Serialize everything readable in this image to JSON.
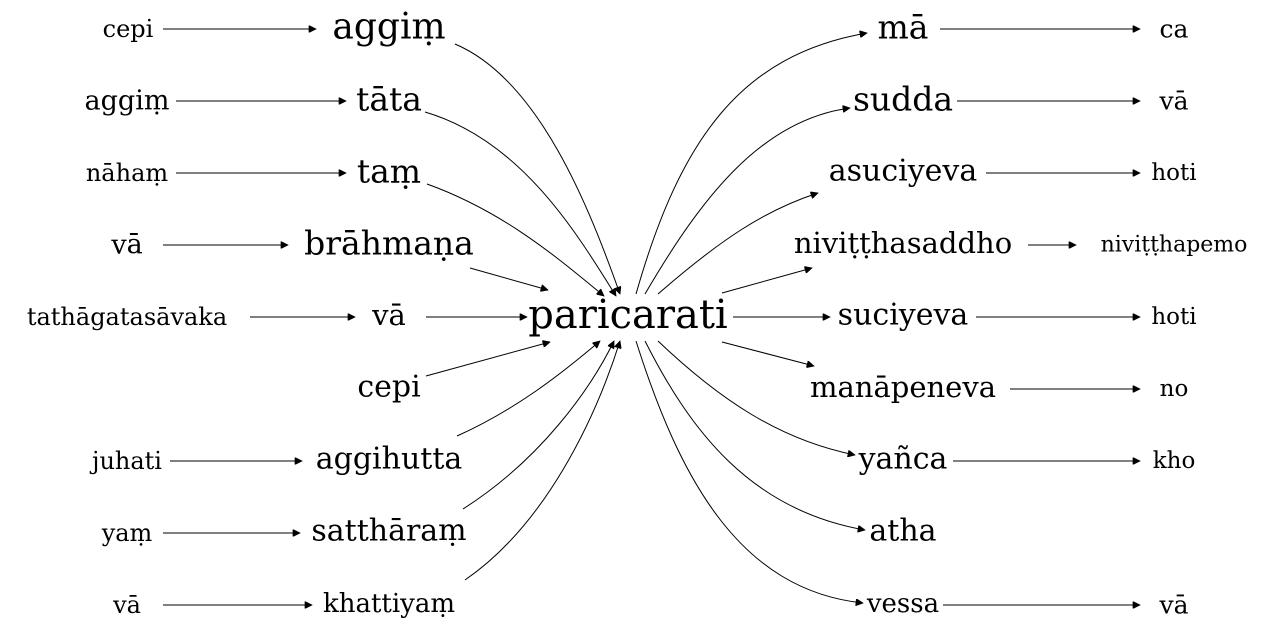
{
  "graph": {
    "center": {
      "label": "paricarati"
    },
    "left_inner": {
      "agg1": {
        "label": "aggiṃ"
      },
      "tata": {
        "label": "tāta"
      },
      "tam": {
        "label": "taṃ"
      },
      "brah": {
        "label": "brāhmaṇa"
      },
      "va1": {
        "label": "vā"
      },
      "cepi2": {
        "label": "cepi"
      },
      "aggih": {
        "label": "aggihutta"
      },
      "sat": {
        "label": "satthāraṃ"
      },
      "khat": {
        "label": "khattiyaṃ"
      }
    },
    "left_outer": {
      "cepi1": {
        "label": "cepi"
      },
      "agg2": {
        "label": "aggiṃ"
      },
      "naham": {
        "label": "nāhaṃ"
      },
      "va0": {
        "label": "vā"
      },
      "tath": {
        "label": "tathāgatasāvaka"
      },
      "juh": {
        "label": "juhati"
      },
      "yam": {
        "label": "yaṃ"
      },
      "va2": {
        "label": "vā"
      }
    },
    "right_inner": {
      "ma": {
        "label": "mā"
      },
      "sudda": {
        "label": "sudda"
      },
      "asuci": {
        "label": "asuciyeva"
      },
      "nivs": {
        "label": "niviṭṭhasaddho"
      },
      "suci": {
        "label": "suciyeva"
      },
      "manap": {
        "label": "manāpeneva"
      },
      "yanca": {
        "label": "yañca"
      },
      "atha": {
        "label": "atha"
      },
      "vessa": {
        "label": "vessa"
      }
    },
    "right_outer": {
      "ca": {
        "label": "ca"
      },
      "vaR1": {
        "label": "vā"
      },
      "hoti1": {
        "label": "hoti"
      },
      "nivp": {
        "label": "niviṭṭhapemo"
      },
      "hoti2": {
        "label": "hoti"
      },
      "no": {
        "label": "no"
      },
      "kho": {
        "label": "kho"
      },
      "vaR2": {
        "label": "vā"
      }
    },
    "edges": [
      [
        "cepi1",
        "agg1"
      ],
      [
        "agg2",
        "tata"
      ],
      [
        "naham",
        "tam"
      ],
      [
        "va0",
        "brah"
      ],
      [
        "tath",
        "va1"
      ],
      [
        "juh",
        "aggih"
      ],
      [
        "yam",
        "sat"
      ],
      [
        "va2",
        "khat"
      ],
      [
        "agg1",
        "center"
      ],
      [
        "tata",
        "center"
      ],
      [
        "tam",
        "center"
      ],
      [
        "brah",
        "center"
      ],
      [
        "va1",
        "center"
      ],
      [
        "cepi2",
        "center"
      ],
      [
        "aggih",
        "center"
      ],
      [
        "sat",
        "center"
      ],
      [
        "khat",
        "center"
      ],
      [
        "center",
        "ma"
      ],
      [
        "center",
        "sudda"
      ],
      [
        "center",
        "asuci"
      ],
      [
        "center",
        "nivs"
      ],
      [
        "center",
        "suci"
      ],
      [
        "center",
        "manap"
      ],
      [
        "center",
        "yanca"
      ],
      [
        "center",
        "atha"
      ],
      [
        "center",
        "vessa"
      ],
      [
        "ma",
        "ca"
      ],
      [
        "sudda",
        "vaR1"
      ],
      [
        "asuci",
        "hoti1"
      ],
      [
        "nivs",
        "nivp"
      ],
      [
        "suci",
        "hoti2"
      ],
      [
        "manap",
        "no"
      ],
      [
        "yanca",
        "kho"
      ],
      [
        "vessa",
        "vaR2"
      ]
    ]
  }
}
